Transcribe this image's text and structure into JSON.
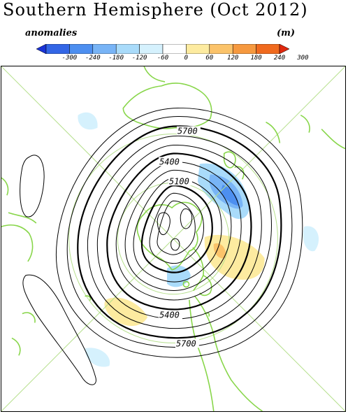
{
  "title": "Southern Hemisphere (Oct 2012)",
  "legend": {
    "left_label": "anomalies",
    "right_label": "(m)",
    "ticks": [
      "-300",
      "-240",
      "-180",
      "-120",
      "-60",
      "0",
      "60",
      "120",
      "180",
      "240",
      "300"
    ],
    "colors": [
      "#1a33d6",
      "#3366e6",
      "#4d8ff0",
      "#78b4f6",
      "#a9dbfa",
      "#d5f1fd",
      "#ffffff",
      "#fdeba0",
      "#fbc36a",
      "#f6993f",
      "#f06a1e",
      "#e0280d"
    ]
  },
  "map": {
    "projection": "polar-stereographic",
    "contour_labels": [
      "5700",
      "5400",
      "5100",
      "5400",
      "5700"
    ],
    "colors": {
      "coastline": "#88d64a",
      "grid": "#b5df8c",
      "contour": "#000000"
    }
  }
}
